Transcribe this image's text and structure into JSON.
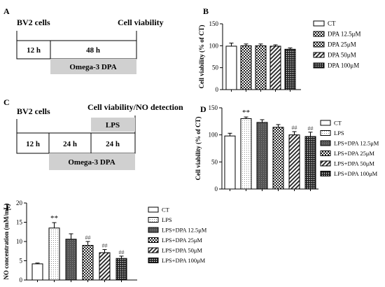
{
  "panel_a": {
    "letter": "A",
    "cells_label": "BV2 cells",
    "end_label": "Cell viability",
    "seg1": "12 h",
    "seg2": "48 h",
    "treatment": "Omega-3 DPA"
  },
  "panel_c": {
    "letter": "C",
    "cells_label": "BV2 cells",
    "end_label": "Cell viability/NO detection",
    "seg1": "12 h",
    "seg2": "24 h",
    "seg3": "24 h",
    "stimulus": "LPS",
    "treatment": "Omega-3 DPA"
  },
  "chart_data": [
    {
      "id": "B",
      "letter": "B",
      "type": "bar",
      "ylabel": "Cell viability (% of  CT)",
      "ylim": [
        0,
        150
      ],
      "yticks": [
        "0",
        "50",
        "100",
        "150"
      ],
      "categories": [
        "CT",
        "DPA 12.5μM",
        "DPA 25μM",
        "DPA 50μM",
        "DPA 100μM"
      ],
      "values": [
        99,
        100,
        100,
        99,
        92
      ],
      "errors": [
        7,
        4,
        4,
        3,
        3
      ],
      "patterns": [
        "white",
        "checker",
        "checker",
        "hatch",
        "dots"
      ],
      "annotations": [
        "",
        "",
        "",
        "",
        ""
      ],
      "legend_position": "right"
    },
    {
      "id": "D",
      "letter": "D",
      "type": "bar",
      "ylabel": "Cell viability (% of CT)",
      "ylim": [
        0,
        150
      ],
      "yticks": [
        "0",
        "50",
        "100",
        "150"
      ],
      "categories": [
        "CT",
        "LPS",
        "LPS+DPA 12.5μM",
        "LPS+DPA 25μM",
        "LPS+DPA 50μM",
        "LPS+DPA 100μM"
      ],
      "values": [
        98,
        130,
        123,
        114,
        100,
        97
      ],
      "errors": [
        5,
        3,
        5,
        5,
        6,
        8
      ],
      "patterns": [
        "white",
        "dots-light",
        "dark",
        "checker",
        "hatch",
        "dots"
      ],
      "annotations": [
        "",
        "**",
        "",
        "",
        "##",
        "##"
      ],
      "legend_position": "right"
    },
    {
      "id": "E",
      "letter": "E",
      "type": "bar",
      "ylabel": "NO concentration (mM/mL)",
      "ylim": [
        0,
        20
      ],
      "yticks": [
        "0",
        "5",
        "10",
        "15",
        "20"
      ],
      "categories": [
        "CT",
        "LPS",
        "LPS+DPA 12.5μM",
        "LPS+DPA 25μM",
        "LPS+DPA 50μM",
        "LPS+DPA 100μM"
      ],
      "values": [
        4.2,
        13.5,
        10.6,
        9.0,
        7.1,
        5.6
      ],
      "errors": [
        0.2,
        1.4,
        1.4,
        1.0,
        0.8,
        0.6
      ],
      "patterns": [
        "white",
        "dots-light",
        "dark",
        "checker",
        "hatch",
        "dots"
      ],
      "annotations": [
        "",
        "**",
        "",
        "##",
        "##",
        "##"
      ],
      "legend_position": "right"
    }
  ]
}
